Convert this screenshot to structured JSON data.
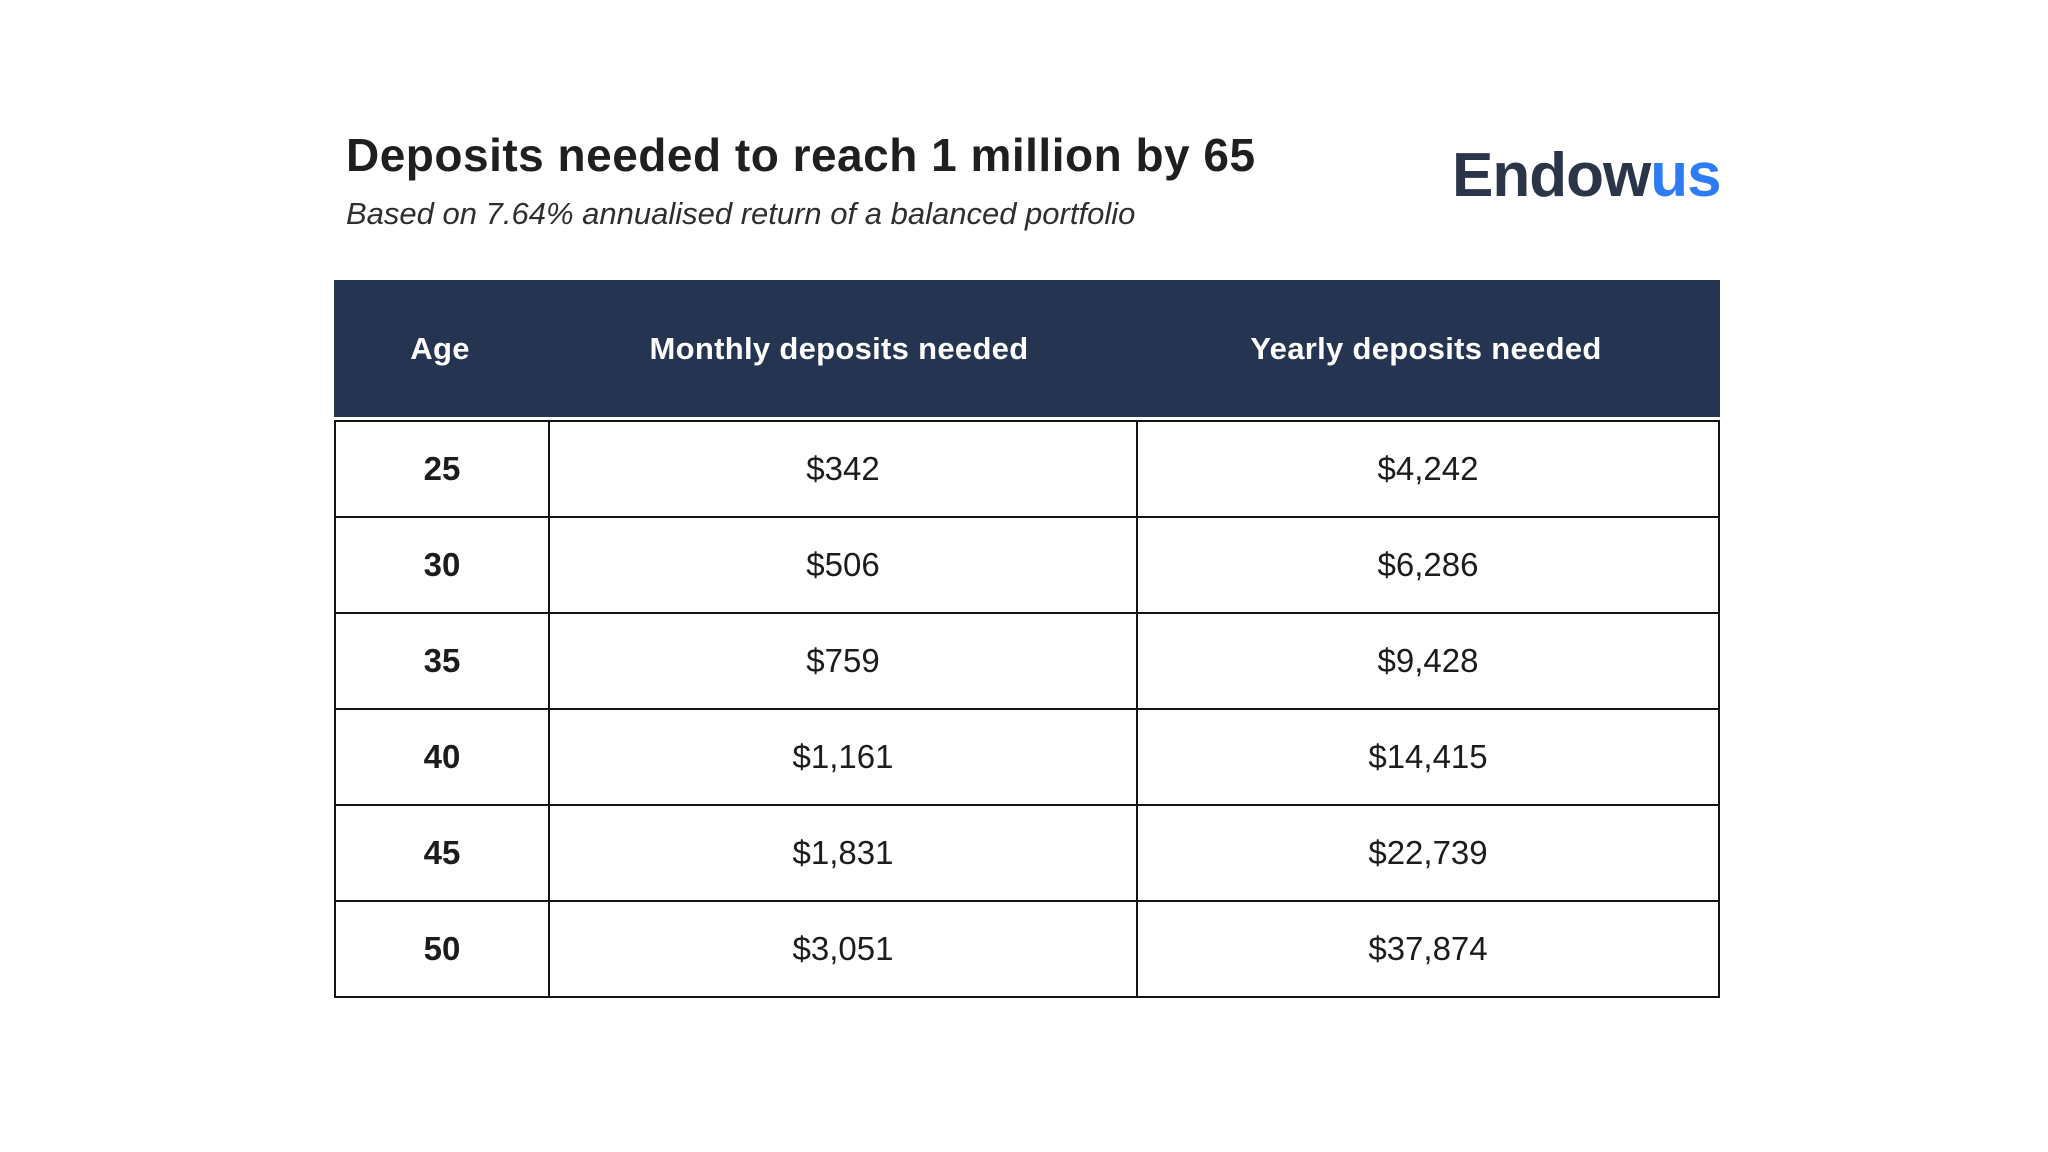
{
  "page": {
    "title": "Deposits needed to reach 1 million by 65",
    "subtitle": "Based on 7.64% annualised return of a balanced portfolio"
  },
  "logo": {
    "part1": "Endow",
    "part2": "us",
    "part1_color": "#2a3549",
    "part2_color": "#2e7cf5"
  },
  "table": {
    "headers": [
      "Age",
      "Monthly deposits needed",
      "Yearly deposits needed"
    ],
    "header_bg": "#253450",
    "header_text_color": "#ffffff",
    "border_color": "#141414",
    "rows": [
      {
        "age": "25",
        "monthly": "$342",
        "yearly": "$4,242"
      },
      {
        "age": "30",
        "monthly": "$506",
        "yearly": "$6,286"
      },
      {
        "age": "35",
        "monthly": "$759",
        "yearly": "$9,428"
      },
      {
        "age": "40",
        "monthly": "$1,161",
        "yearly": "$14,415"
      },
      {
        "age": "45",
        "monthly": "$1,831",
        "yearly": "$22,739"
      },
      {
        "age": "50",
        "monthly": "$3,051",
        "yearly": "$37,874"
      }
    ]
  },
  "chart_data": {
    "type": "table",
    "title": "Deposits needed to reach 1 million by 65",
    "subtitle": "Based on 7.64% annualised return of a balanced portfolio",
    "columns": [
      "Age",
      "Monthly deposits needed",
      "Yearly deposits needed"
    ],
    "categories": [
      25,
      30,
      35,
      40,
      45,
      50
    ],
    "series": [
      {
        "name": "Monthly deposits needed",
        "values": [
          342,
          506,
          759,
          1161,
          1831,
          3051
        ]
      },
      {
        "name": "Yearly deposits needed",
        "values": [
          4242,
          6286,
          9428,
          14415,
          22739,
          37874
        ]
      }
    ]
  }
}
